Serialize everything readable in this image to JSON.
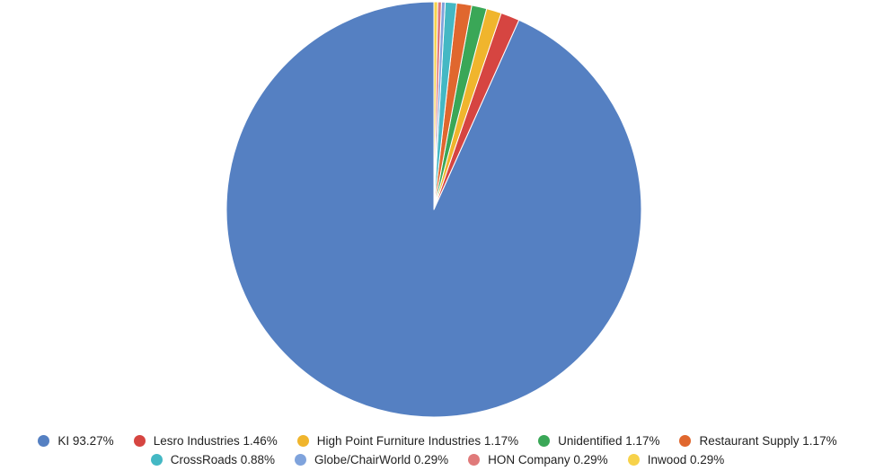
{
  "chart_data": {
    "type": "pie",
    "title": "",
    "start_angle_deg": 0,
    "direction": "counterclockwise",
    "legend_position": "bottom",
    "slices": [
      {
        "label": "KI",
        "value": 93.27,
        "display": "KI 93.27%",
        "color": "#5580c2"
      },
      {
        "label": "Lesro Industries",
        "value": 1.46,
        "display": "Lesro Industries 1.46%",
        "color": "#d64541"
      },
      {
        "label": "High Point Furniture Industries",
        "value": 1.17,
        "display": "High Point Furniture Industries 1.17%",
        "color": "#f0b52d"
      },
      {
        "label": "Unidentified",
        "value": 1.17,
        "display": "Unidentified 1.17%",
        "color": "#3aa757"
      },
      {
        "label": "Restaurant Supply",
        "value": 1.17,
        "display": "Restaurant Supply 1.17%",
        "color": "#e0672e"
      },
      {
        "label": "CrossRoads",
        "value": 0.88,
        "display": "CrossRoads 0.88%",
        "color": "#44b8c4"
      },
      {
        "label": "Globe/ChairWorld",
        "value": 0.29,
        "display": "Globe/ChairWorld 0.29%",
        "color": "#7fa3dc"
      },
      {
        "label": "HON Company",
        "value": 0.29,
        "display": "HON Company 0.29%",
        "color": "#e07a7a"
      },
      {
        "label": "Inwood",
        "value": 0.29,
        "display": "Inwood 0.29%",
        "color": "#f7d24a"
      }
    ]
  }
}
